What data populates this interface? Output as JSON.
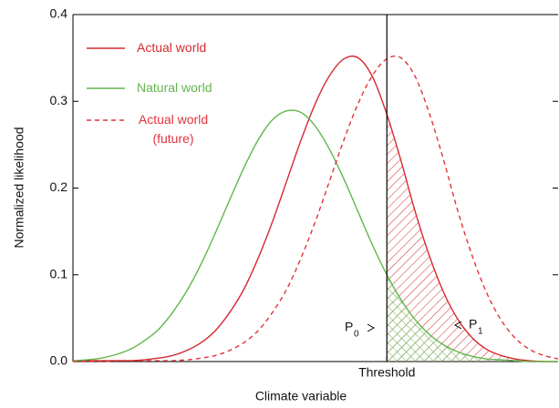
{
  "chart_data": {
    "type": "line",
    "x_label": "Climate variable",
    "y_label": "Normalized likelihood",
    "categories": [
      null,
      null,
      null,
      null,
      null,
      null,
      null,
      null,
      null,
      null,
      null,
      null,
      null,
      null,
      null,
      null,
      null,
      null,
      null,
      null,
      null,
      null,
      "Threshold",
      null,
      null,
      null,
      null,
      null,
      null,
      null,
      null,
      null,
      null,
      null,
      null
    ],
    "series": [
      {
        "name": "Actual world",
        "color": "#d42a2f",
        "dashed": false,
        "hatch": "diagonal",
        "values": [
          0.001,
          0.001,
          0.001,
          0.001,
          0.001,
          0.002,
          0.004,
          0.007,
          0.013,
          0.022,
          0.036,
          0.057,
          0.084,
          0.12,
          0.162,
          0.209,
          0.256,
          0.298,
          0.33,
          0.349,
          0.35,
          0.328,
          0.285,
          0.231,
          0.172,
          0.121,
          0.079,
          0.048,
          0.027,
          0.014,
          0.007,
          0.003,
          0.001,
          0.0,
          0.0
        ]
      },
      {
        "name": "Natural world",
        "color": "#62b64c",
        "dashed": false,
        "hatch": "cross",
        "values": [
          0.001,
          0.002,
          0.004,
          0.008,
          0.014,
          0.024,
          0.037,
          0.057,
          0.082,
          0.113,
          0.149,
          0.187,
          0.224,
          0.256,
          0.279,
          0.289,
          0.287,
          0.271,
          0.244,
          0.21,
          0.172,
          0.134,
          0.1,
          0.071,
          0.048,
          0.031,
          0.019,
          0.011,
          0.006,
          0.003,
          0.002,
          0.001,
          0.0,
          0.0,
          0.0
        ]
      },
      {
        "name": "Actual world (future)",
        "color": "#e0343c",
        "dashed": true,
        "hatch": null,
        "values": [
          0.0,
          0.0,
          0.0,
          0.001,
          0.001,
          0.001,
          0.001,
          0.001,
          0.002,
          0.004,
          0.007,
          0.013,
          0.022,
          0.036,
          0.057,
          0.084,
          0.12,
          0.162,
          0.209,
          0.256,
          0.298,
          0.33,
          0.349,
          0.35,
          0.328,
          0.285,
          0.231,
          0.172,
          0.121,
          0.079,
          0.048,
          0.027,
          0.014,
          0.007,
          0.003
        ]
      }
    ],
    "ylim": [
      0,
      0.4
    ],
    "yticks": [
      {
        "value": 0,
        "label": "0.0"
      },
      0.1,
      0.2,
      0.3,
      0.4
    ],
    "threshold_line": true,
    "annotations": [
      {
        "text": "P",
        "subscript": "0"
      },
      {
        "text": "P",
        "subscript": "1"
      }
    ]
  }
}
